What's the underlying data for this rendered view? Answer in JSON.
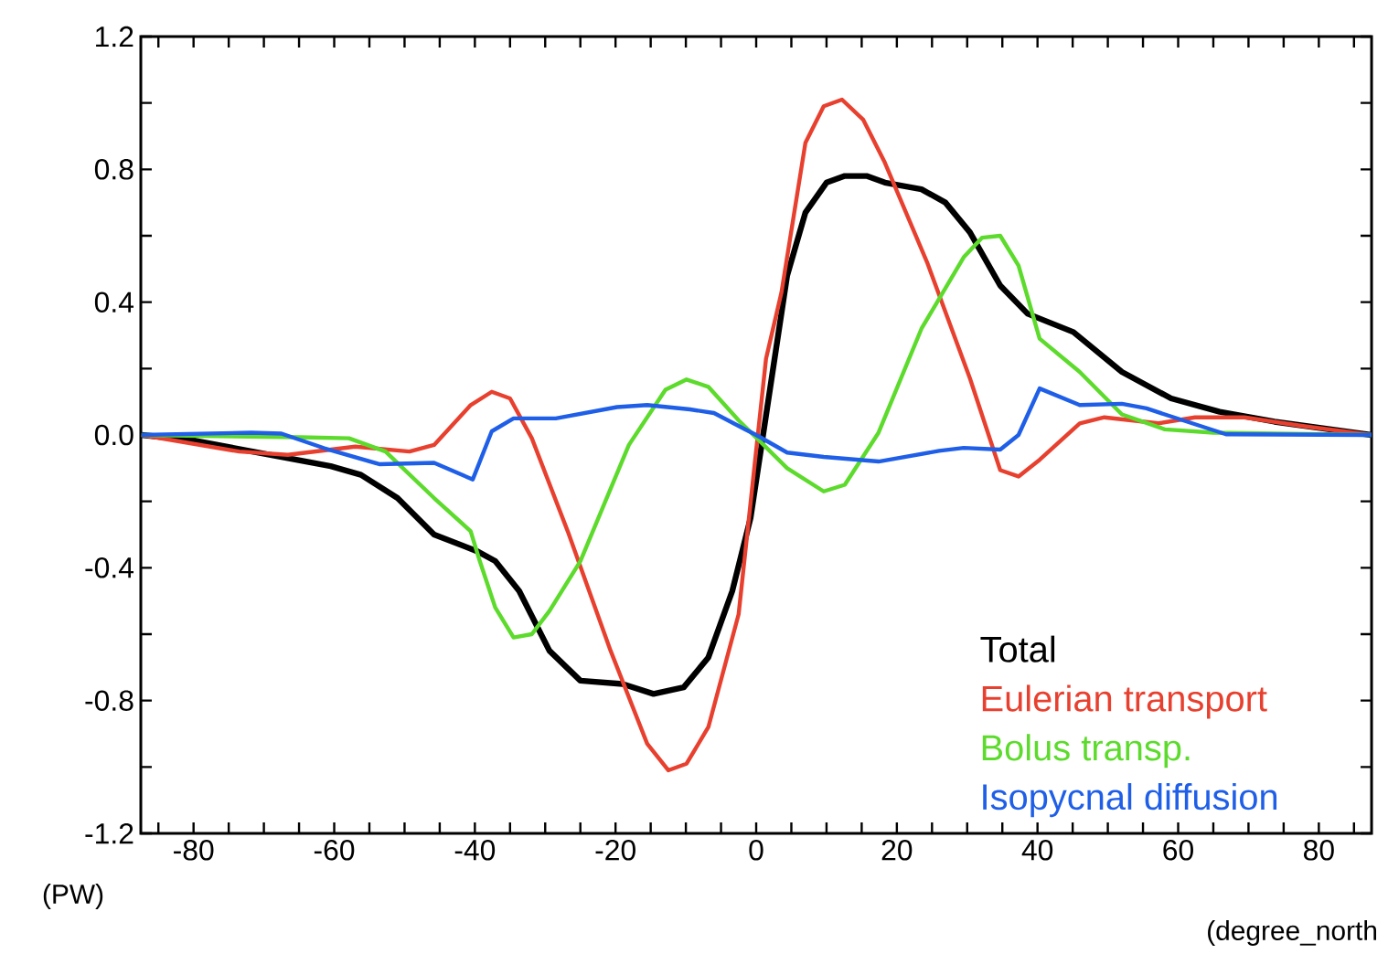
{
  "chart_data": {
    "type": "line",
    "xlabel": "(degree_north",
    "ylabel": "(PW)",
    "xlim": [
      -87.5,
      87.5
    ],
    "ylim": [
      -1.2,
      1.2
    ],
    "xticks": [
      {
        "value": -85,
        "label": null
      },
      -80,
      {
        "value": -75,
        "label": null
      },
      {
        "value": -70,
        "label": null
      },
      {
        "value": -65,
        "label": null
      },
      -60,
      {
        "value": -55,
        "label": null
      },
      {
        "value": -50,
        "label": null
      },
      {
        "value": -45,
        "label": null
      },
      -40,
      {
        "value": -35,
        "label": null
      },
      {
        "value": -30,
        "label": null
      },
      {
        "value": -25,
        "label": null
      },
      -20,
      {
        "value": -15,
        "label": null
      },
      {
        "value": -10,
        "label": null
      },
      {
        "value": -5,
        "label": null
      },
      0,
      {
        "value": 5,
        "label": null
      },
      {
        "value": 10,
        "label": null
      },
      {
        "value": 15,
        "label": null
      },
      20,
      {
        "value": 25,
        "label": null
      },
      {
        "value": 30,
        "label": null
      },
      {
        "value": 35,
        "label": null
      },
      40,
      {
        "value": 45,
        "label": null
      },
      {
        "value": 50,
        "label": null
      },
      {
        "value": 55,
        "label": null
      },
      60,
      {
        "value": 65,
        "label": null
      },
      {
        "value": 70,
        "label": null
      },
      {
        "value": 75,
        "label": null
      },
      80,
      {
        "value": 85,
        "label": null
      }
    ],
    "yticks": [
      {
        "value": -1.2,
        "label": "-1.2"
      },
      {
        "value": -1.0,
        "label": null
      },
      {
        "value": -0.8,
        "label": "-0.8"
      },
      {
        "value": -0.6,
        "label": null
      },
      {
        "value": -0.4,
        "label": "-0.4"
      },
      {
        "value": -0.2,
        "label": null
      },
      {
        "value": 0.0,
        "label": "0.0"
      },
      {
        "value": 0.2,
        "label": null
      },
      {
        "value": 0.4,
        "label": "0.4"
      },
      {
        "value": 0.6,
        "label": null
      },
      {
        "value": 0.8,
        "label": "0.8"
      },
      {
        "value": 1.0,
        "label": null
      },
      {
        "value": 1.2,
        "label": "1.2"
      }
    ],
    "legend": "bottom right",
    "grid": false,
    "marker": "none",
    "line_style": "solid",
    "series": [
      {
        "name": "Total",
        "color": "#000000",
        "x": [
          -87.4,
          -80.4,
          -60.5,
          -56.2,
          -51,
          -45.8,
          -39.7,
          -37.1,
          -33.7,
          -29.4,
          -25,
          -19,
          -14.6,
          -10.3,
          -6.8,
          -3.4,
          -0.8,
          4.4,
          7,
          10,
          12.6,
          15.7,
          18.3,
          23.5,
          26.9,
          30.4,
          34.7,
          38.6,
          45.1,
          52,
          59,
          65.9,
          73.7,
          87.5
        ],
        "values": [
          0,
          -0.015,
          -0.094,
          -0.12,
          -0.19,
          -0.3,
          -0.35,
          -0.38,
          -0.47,
          -0.65,
          -0.74,
          -0.75,
          -0.78,
          -0.76,
          -0.67,
          -0.47,
          -0.25,
          0.48,
          0.67,
          0.76,
          0.78,
          0.78,
          0.76,
          0.74,
          0.7,
          0.61,
          0.45,
          0.365,
          0.31,
          0.19,
          0.11,
          0.07,
          0.04,
          0
        ]
      },
      {
        "name": "Eulerian transport",
        "color": "#e8402f",
        "x": [
          -87.4,
          -73.5,
          -66.6,
          -57,
          -49.3,
          -45.8,
          -40.6,
          -37.6,
          -35,
          -31.9,
          -26.8,
          -20.7,
          -15.5,
          -12.5,
          -9.9,
          -6.8,
          -2.5,
          1.4,
          3.6,
          7,
          9.6,
          12.2,
          15.2,
          18.3,
          24.3,
          30.4,
          34.7,
          37.3,
          40.3,
          46,
          49.5,
          57.2,
          62.4,
          69.4,
          78,
          87.5
        ],
        "values": [
          0,
          -0.05,
          -0.06,
          -0.035,
          -0.05,
          -0.03,
          0.09,
          0.13,
          0.11,
          -0.01,
          -0.29,
          -0.65,
          -0.93,
          -1.01,
          -0.99,
          -0.88,
          -0.54,
          0.23,
          0.43,
          0.88,
          0.99,
          1.01,
          0.95,
          0.82,
          0.52,
          0.17,
          -0.106,
          -0.125,
          -0.075,
          0.035,
          0.053,
          0.035,
          0.053,
          0.053,
          0.026,
          0
        ]
      },
      {
        "name": "Bolus transp.",
        "color": "#5cdb2c",
        "x": [
          -87.4,
          -64.8,
          -57.9,
          -52.7,
          -45.8,
          -40.6,
          -39.3,
          -37.1,
          -34.5,
          -31.9,
          -29.4,
          -25,
          -18.1,
          -12.9,
          -9.9,
          -6.8,
          -2.5,
          0.1,
          4.4,
          9.6,
          12.6,
          17.4,
          23.5,
          29.5,
          32.1,
          34.7,
          37.3,
          40.3,
          46,
          52,
          58.1,
          65,
          87.5
        ],
        "values": [
          0,
          -0.007,
          -0.01,
          -0.05,
          -0.19,
          -0.29,
          -0.38,
          -0.52,
          -0.61,
          -0.6,
          -0.53,
          -0.38,
          -0.03,
          0.136,
          0.167,
          0.145,
          0.044,
          -0.01,
          -0.1,
          -0.17,
          -0.15,
          0.007,
          0.32,
          0.535,
          0.594,
          0.6,
          0.51,
          0.29,
          0.19,
          0.062,
          0.017,
          0.007,
          0
        ]
      },
      {
        "name": "Isopycnal diffusion",
        "color": "#1f5fe8",
        "x": [
          -87.4,
          -71.8,
          -67.5,
          -61.4,
          -53.6,
          -45.8,
          -40.3,
          -37.6,
          -34.5,
          -28.5,
          -19.8,
          -15.5,
          -9.4,
          -6,
          -1.6,
          0,
          4.4,
          9.6,
          17.4,
          26,
          29.5,
          34.7,
          37.3,
          40.3,
          46,
          52,
          55.5,
          60.7,
          66.8,
          87.5
        ],
        "values": [
          0,
          0.007,
          0.004,
          -0.04,
          -0.088,
          -0.084,
          -0.134,
          0.011,
          0.05,
          0.05,
          0.084,
          0.09,
          0.077,
          0.066,
          0.017,
          0,
          -0.053,
          -0.066,
          -0.08,
          -0.048,
          -0.039,
          -0.044,
          0,
          0.14,
          0.09,
          0.094,
          0.08,
          0.044,
          0.002,
          0
        ]
      }
    ]
  }
}
